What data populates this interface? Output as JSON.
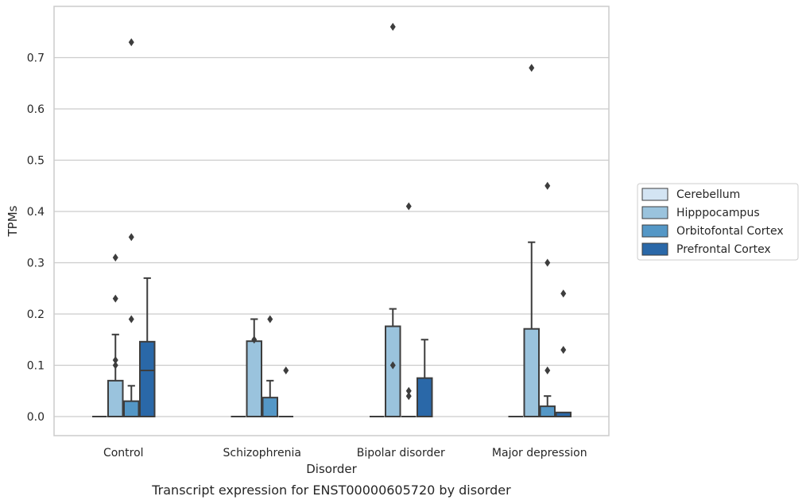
{
  "caption": "Transcript expression for ENST00000605720 by disorder",
  "chart_data": {
    "type": "box",
    "xlabel": "Disorder",
    "ylabel": "TPMs",
    "ylim": [
      -0.037,
      0.8
    ],
    "yticks": [
      0.0,
      0.1,
      0.2,
      0.3,
      0.4,
      0.5,
      0.6,
      0.7
    ],
    "ytick_labels": [
      "0.0",
      "0.1",
      "0.2",
      "0.3",
      "0.4",
      "0.5",
      "0.6",
      "0.7"
    ],
    "grid": "horizontal",
    "legend_position": "right",
    "categories": [
      "Control",
      "Schizophrenia",
      "Bipolar disorder",
      "Major depression"
    ],
    "series": [
      {
        "name": "Cerebellum",
        "color": "#d3e4f3",
        "boxes": [
          {
            "q1": 0,
            "median": 0,
            "q3": 0,
            "whisker_low": 0,
            "whisker_high": 0,
            "outliers": []
          },
          {
            "q1": 0,
            "median": 0,
            "q3": 0,
            "whisker_low": 0,
            "whisker_high": 0,
            "outliers": []
          },
          {
            "q1": 0,
            "median": 0,
            "q3": 0,
            "whisker_low": 0,
            "whisker_high": 0,
            "outliers": []
          },
          {
            "q1": 0,
            "median": 0,
            "q3": 0,
            "whisker_low": 0,
            "whisker_high": 0,
            "outliers": []
          }
        ]
      },
      {
        "name": "Hipppocampus",
        "color": "#9ac3dd",
        "boxes": [
          {
            "q1": 0,
            "median": 0,
            "q3": 0.07,
            "whisker_low": 0,
            "whisker_high": 0.16,
            "outliers": [
              0.11,
              0.1,
              0.31,
              0.23
            ]
          },
          {
            "q1": 0,
            "median": 0,
            "q3": 0.147,
            "whisker_low": 0,
            "whisker_high": 0.19,
            "outliers": [
              0.15
            ]
          },
          {
            "q1": 0,
            "median": 0,
            "q3": 0.176,
            "whisker_low": 0,
            "whisker_high": 0.21,
            "outliers": [
              0.1,
              0.76
            ]
          },
          {
            "q1": 0,
            "median": 0,
            "q3": 0.171,
            "whisker_low": 0,
            "whisker_high": 0.34,
            "outliers": [
              0.68
            ]
          }
        ]
      },
      {
        "name": "Orbitofontal Cortex",
        "color": "#5497c6",
        "boxes": [
          {
            "q1": 0,
            "median": 0,
            "q3": 0.03,
            "whisker_low": 0,
            "whisker_high": 0.06,
            "outliers": [
              0.19,
              0.35,
              0.73
            ]
          },
          {
            "q1": 0,
            "median": 0,
            "q3": 0.037,
            "whisker_low": 0,
            "whisker_high": 0.07,
            "outliers": [
              0.19
            ]
          },
          {
            "q1": 0,
            "median": 0,
            "q3": 0,
            "whisker_low": 0,
            "whisker_high": 0,
            "outliers": [
              0.04,
              0.05,
              0.41
            ]
          },
          {
            "q1": 0,
            "median": 0,
            "q3": 0.02,
            "whisker_low": 0,
            "whisker_high": 0.04,
            "outliers": [
              0.09,
              0.3,
              0.45
            ]
          }
        ]
      },
      {
        "name": "Prefrontal Cortex",
        "color": "#2a68a8",
        "boxes": [
          {
            "q1": 0,
            "median": 0.09,
            "q3": 0.146,
            "whisker_low": 0,
            "whisker_high": 0.27,
            "outliers": []
          },
          {
            "q1": 0,
            "median": 0,
            "q3": 0,
            "whisker_low": 0,
            "whisker_high": 0,
            "outliers": [
              0.09
            ]
          },
          {
            "q1": 0,
            "median": 0,
            "q3": 0.075,
            "whisker_low": 0,
            "whisker_high": 0.15,
            "outliers": []
          },
          {
            "q1": 0,
            "median": 0,
            "q3": 0.008,
            "whisker_low": 0,
            "whisker_high": 0.008,
            "outliers": [
              0.13,
              0.24
            ]
          }
        ]
      }
    ]
  }
}
